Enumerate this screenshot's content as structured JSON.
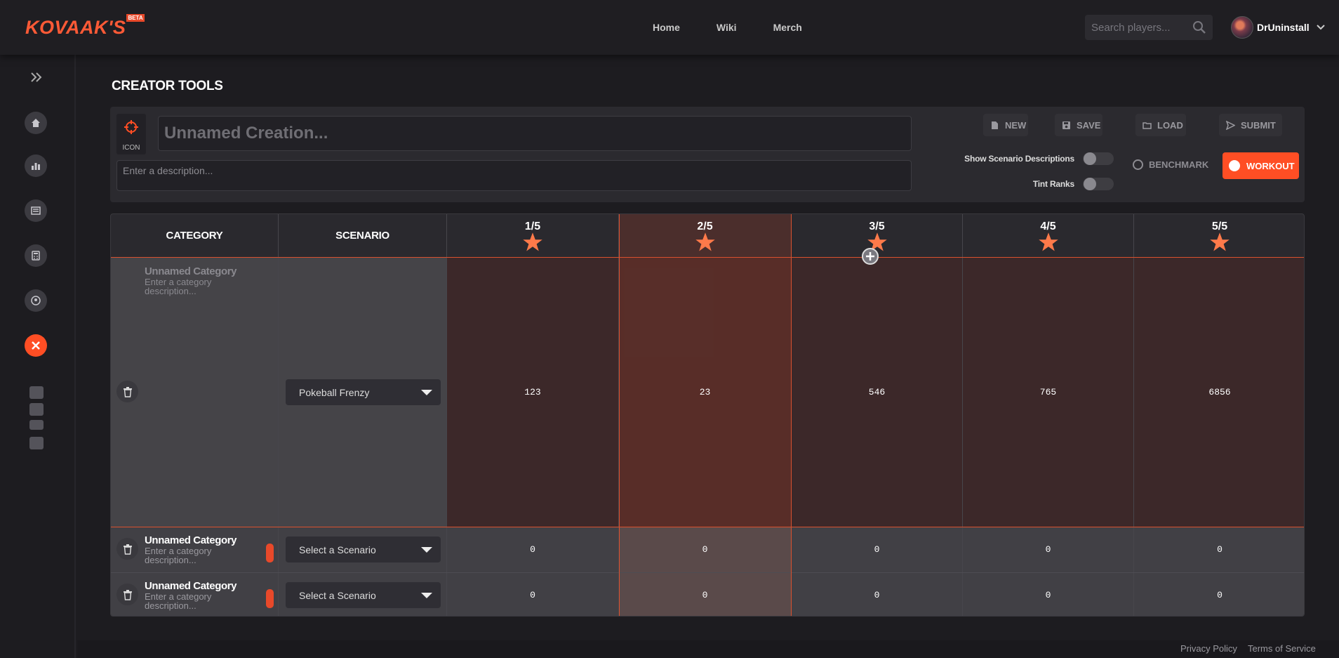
{
  "brand": {
    "logo_text": "KOVAAK'S",
    "beta_badge": "BETA",
    "accent": "#ff4e24"
  },
  "nav": {
    "items": [
      "Home",
      "Wiki",
      "Merch"
    ]
  },
  "search": {
    "placeholder": "Search players..."
  },
  "user": {
    "name": "DrUninstall"
  },
  "sidebar": {
    "items": [
      "expand-icon",
      "home-icon",
      "stats-icon",
      "news-icon",
      "calculator-icon",
      "profile-icon",
      "creator-tools-icon"
    ],
    "social": [
      "steam-icon",
      "discord-icon",
      "youtube-icon",
      "twitter-icon"
    ]
  },
  "page": {
    "title": "CREATOR TOOLS"
  },
  "creator": {
    "icon_label": "ICON",
    "name_placeholder": "Unnamed Creation...",
    "description_placeholder": "Enter a description...",
    "buttons": {
      "new": "NEW",
      "save": "SAVE",
      "load": "LOAD",
      "submit": "SUBMIT"
    },
    "toggles": {
      "show_descriptions": "Show Scenario Descriptions",
      "tint_ranks": "Tint Ranks"
    },
    "modes": {
      "benchmark": "BENCHMARK",
      "workout": "WORKOUT"
    }
  },
  "table": {
    "headers": {
      "category": "CATEGORY",
      "scenario": "SCENARIO"
    },
    "ranks": [
      "1/5",
      "2/5",
      "3/5",
      "4/5",
      "5/5"
    ],
    "rows": [
      {
        "category": "Unnamed Category",
        "description": "Enter a category description...",
        "scenario": "Pokeball Frenzy",
        "values": [
          "123",
          "23",
          "546",
          "765",
          "6856"
        ]
      },
      {
        "category": "Unnamed Category",
        "description": "Enter a category description...",
        "scenario": "Select a Scenario",
        "values": [
          "0",
          "0",
          "0",
          "0",
          "0"
        ]
      },
      {
        "category": "Unnamed Category",
        "description": "Enter a category description...",
        "scenario": "Select a Scenario",
        "values": [
          "0",
          "0",
          "0",
          "0",
          "0"
        ]
      }
    ]
  },
  "footer": {
    "privacy": "Privacy Policy",
    "terms": "Terms of Service"
  }
}
